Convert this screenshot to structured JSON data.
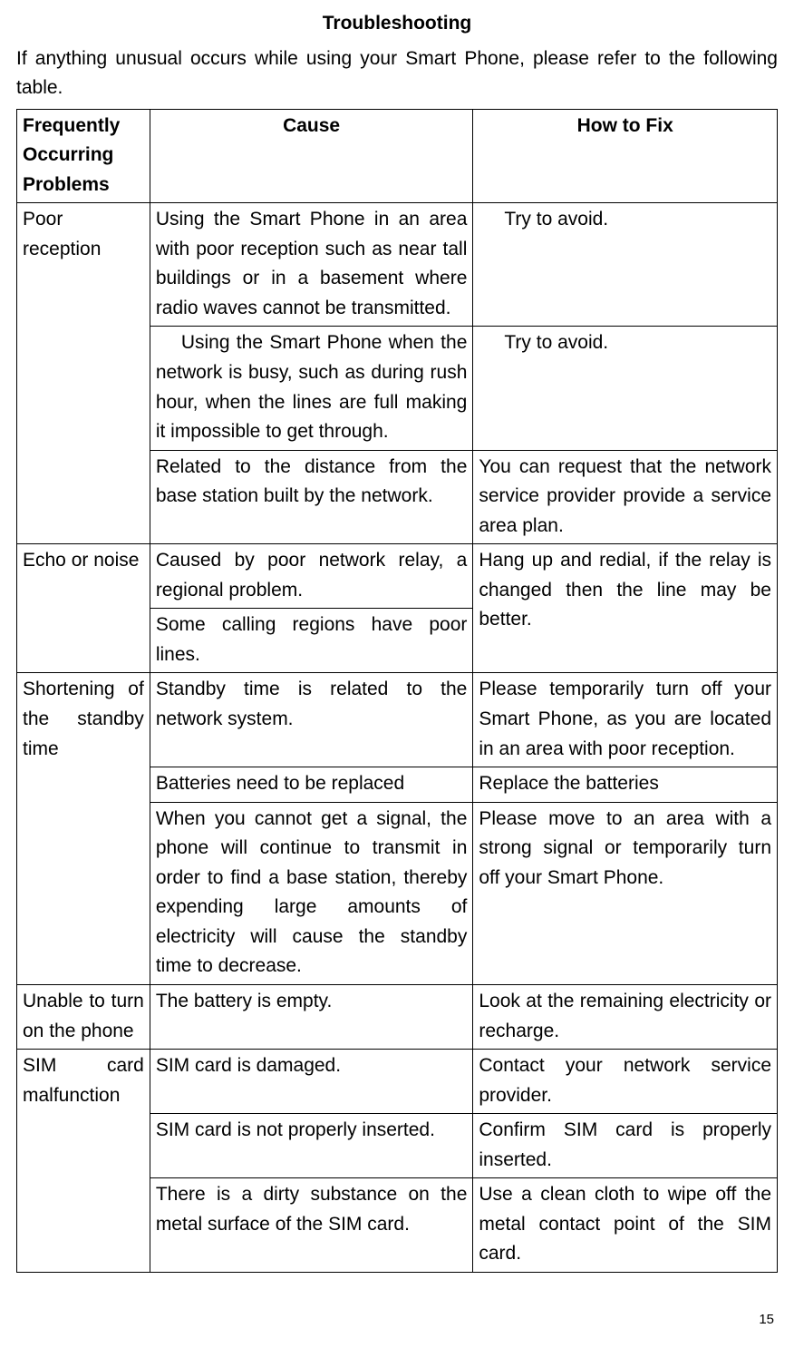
{
  "title": "Troubleshooting",
  "intro": "If anything unusual occurs while using your Smart Phone, please refer to the following table.",
  "headers": {
    "col1": "Frequently Occurring Problems",
    "col2": "Cause",
    "col3": "How to Fix"
  },
  "rows": {
    "r1": {
      "problem": "Poor reception",
      "cause": "Using the Smart Phone in an area with poor reception such as near tall buildings or in a basement where radio waves cannot be transmitted.",
      "fix": "Try to avoid."
    },
    "r2": {
      "cause": "Using the Smart Phone when the network is busy, such as during rush hour, when the lines are full making it impossible to get through.",
      "fix": "Try to avoid."
    },
    "r3": {
      "cause": "Related to the distance from the base station built by the network.",
      "fix": "You can request that the network service provider provide a service area plan."
    },
    "r4": {
      "problem": "Echo or noise",
      "cause": "Caused by poor network relay, a regional problem.",
      "fix": "Hang up and redial, if the relay is changed then the line may be better."
    },
    "r5": {
      "cause": "Some calling regions have poor lines."
    },
    "r6": {
      "problem": "Shortening of the standby time",
      "cause": "Standby time is related to the network system.",
      "fix": "Please temporarily turn off your Smart Phone, as you are located in an area with poor reception."
    },
    "r7": {
      "cause": "Batteries need to be replaced",
      "fix": "Replace the batteries"
    },
    "r8": {
      "cause": "When you cannot get a signal, the phone will continue to transmit in order to find a base station, thereby expending large amounts of electricity will cause the standby time to decrease.",
      "fix": "Please move to an area with a strong signal or temporarily turn off your Smart Phone."
    },
    "r9": {
      "problem": "Unable to turn on the phone",
      "cause": "The battery is empty.",
      "fix": "Look at the remaining electricity or recharge."
    },
    "r10": {
      "problem": "SIM card malfunction",
      "cause": "SIM card is damaged.",
      "fix": "Contact your network service provider."
    },
    "r11": {
      "cause": "SIM card is not properly inserted.",
      "fix": "Confirm SIM card is properly inserted."
    },
    "r12": {
      "cause": "There is a dirty substance on the metal surface of the SIM card.",
      "fix": "Use a clean cloth to wipe off the metal contact point of the SIM card."
    }
  },
  "pageNumber": "15",
  "styles": {
    "background_color": "#ffffff",
    "text_color": "#000000",
    "border_color": "#000000",
    "font_family": "Arial",
    "body_font_size": 21,
    "page_num_font_size": 15,
    "col_widths_pct": [
      17.5,
      42.5,
      40
    ]
  }
}
